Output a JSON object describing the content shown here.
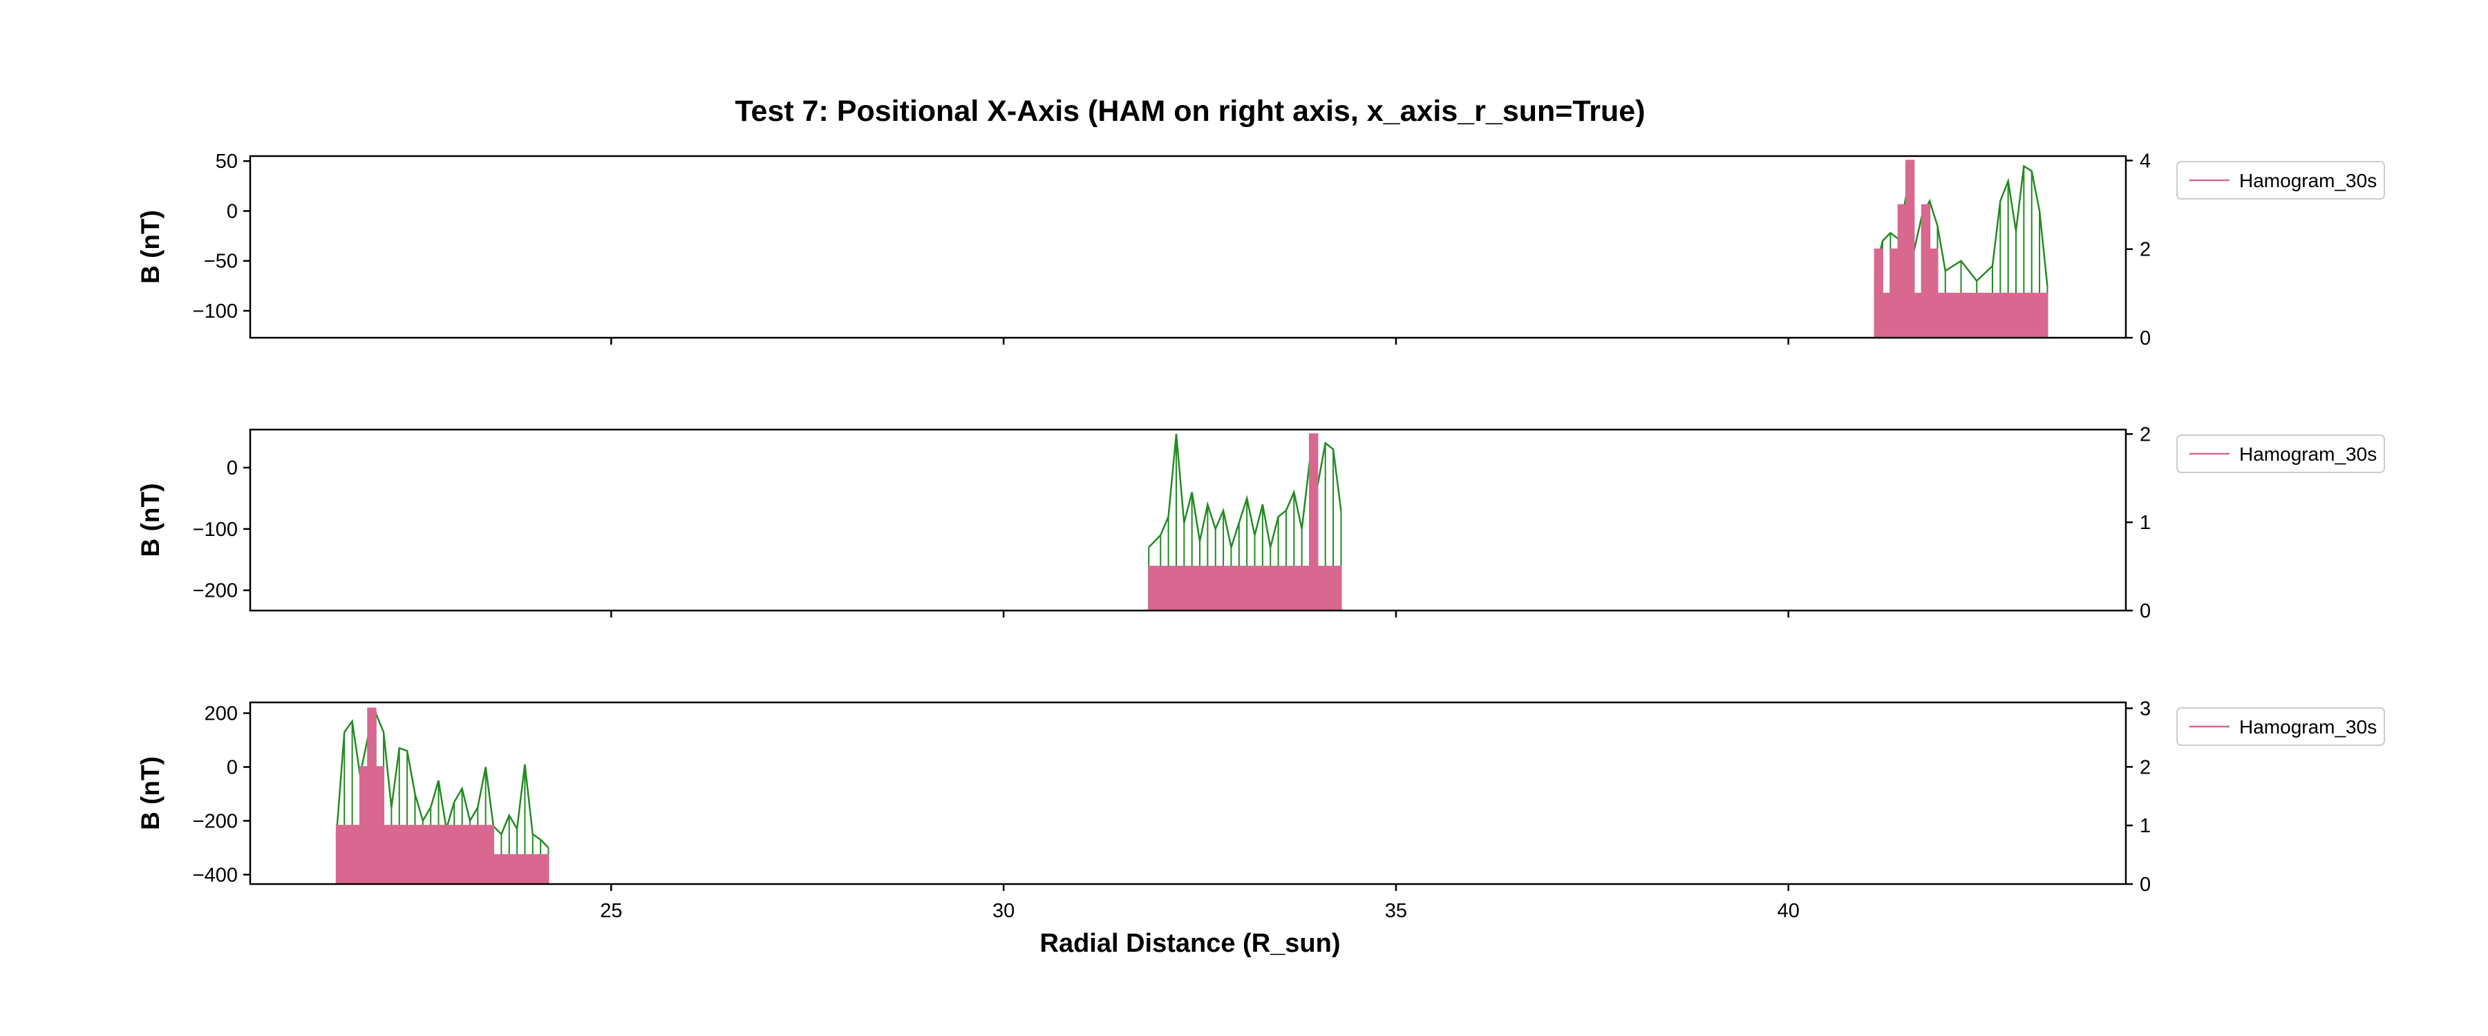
{
  "title": "Test 7: Positional X-Axis (HAM on right axis, x_axis_r_sun=True)",
  "xlabel": "Radial Distance (R_sun)",
  "colors": {
    "field": "#228b22",
    "ham": "#d86890",
    "axes": "#000000",
    "legend_border": "#cccccc"
  },
  "chart_data": {
    "type": "line",
    "title": "Test 7: Positional X-Axis (HAM on right axis, x_axis_r_sun=True)",
    "xlabel": "Radial Distance (R_sun)",
    "xlim": [
      20.4,
      44.3
    ],
    "xticks": [
      25,
      30,
      35,
      40
    ],
    "grid": false,
    "legend_placement": "outside-right",
    "panels": [
      {
        "ylabel": "B (nT)",
        "ylim": [
          -127,
          55
        ],
        "yticks": [
          50,
          0,
          -50,
          -100
        ],
        "ylim_right": [
          0,
          4.1
        ],
        "yticks_right": [
          4,
          2,
          0
        ],
        "legend": "Hamogram_30s",
        "x_range": [
          41.1,
          43.3
        ],
        "series": [
          {
            "name": "",
            "axis": "left",
            "x": [
              41.1,
              41.2,
              41.3,
              41.4,
              41.5,
              41.6,
              41.7,
              41.8,
              41.9,
              42.0,
              42.2,
              42.4,
              42.6,
              42.7,
              42.8,
              42.9,
              43.0,
              43.1,
              43.2,
              43.3
            ],
            "y": [
              -65,
              -30,
              -22,
              -28,
              15,
              -40,
              -5,
              10,
              -15,
              -60,
              -50,
              -70,
              -55,
              10,
              30,
              -20,
              45,
              40,
              0,
              -75
            ]
          },
          {
            "name": "Hamogram_30s",
            "axis": "right",
            "x": [
              41.1,
              41.2,
              41.3,
              41.4,
              41.5,
              41.6,
              41.7,
              41.8,
              41.9,
              42.0,
              42.2,
              42.4,
              42.6,
              42.7,
              42.8,
              42.9,
              43.0,
              43.1,
              43.2,
              43.3
            ],
            "y": [
              2,
              1,
              2,
              3,
              4,
              1,
              3,
              2,
              1,
              1,
              1,
              1,
              1,
              1,
              1,
              1,
              1,
              1,
              1,
              1
            ]
          }
        ]
      },
      {
        "ylabel": "B (nT)",
        "ylim": [
          -233,
          62
        ],
        "yticks": [
          0,
          -100,
          -200
        ],
        "ylim_right": [
          0,
          2.05
        ],
        "yticks_right": [
          2,
          1,
          0
        ],
        "legend": "Hamogram_30s",
        "x_range": [
          31.85,
          34.3
        ],
        "series": [
          {
            "name": "",
            "axis": "left",
            "x": [
              31.85,
              32.0,
              32.1,
              32.2,
              32.3,
              32.4,
              32.5,
              32.6,
              32.7,
              32.8,
              32.9,
              33.0,
              33.1,
              33.2,
              33.3,
              33.4,
              33.5,
              33.6,
              33.7,
              33.8,
              33.9,
              34.0,
              34.1,
              34.2,
              34.3
            ],
            "y": [
              -130,
              -110,
              -80,
              55,
              -90,
              -40,
              -120,
              -60,
              -100,
              -70,
              -130,
              -90,
              -50,
              -110,
              -60,
              -130,
              -80,
              -70,
              -40,
              -100,
              10,
              -30,
              40,
              30,
              -70
            ]
          },
          {
            "name": "Hamogram_30s",
            "axis": "right",
            "x": [
              31.85,
              32.0,
              32.1,
              32.2,
              32.3,
              32.4,
              32.5,
              32.6,
              32.7,
              32.8,
              32.9,
              33.0,
              33.1,
              33.2,
              33.3,
              33.4,
              33.5,
              33.6,
              33.7,
              33.8,
              33.9,
              34.0,
              34.1,
              34.2,
              34.3
            ],
            "y": [
              0.5,
              0.5,
              0.5,
              0.5,
              0.5,
              0.5,
              0.5,
              0.5,
              0.5,
              0.5,
              0.5,
              0.5,
              0.5,
              0.5,
              0.5,
              0.5,
              0.5,
              0.5,
              0.5,
              0.5,
              2,
              0.5,
              0.5,
              0.5,
              0.5
            ]
          }
        ]
      },
      {
        "ylabel": "B (nT)",
        "ylim": [
          -435,
          240
        ],
        "yticks": [
          200,
          0,
          -200,
          -400
        ],
        "ylim_right": [
          0,
          3.1
        ],
        "yticks_right": [
          3,
          2,
          1,
          0
        ],
        "legend": "Hamogram_30s",
        "x_range": [
          21.5,
          24.2
        ],
        "series": [
          {
            "name": "",
            "axis": "left",
            "x": [
              21.5,
              21.6,
              21.7,
              21.8,
              21.9,
              22.0,
              22.1,
              22.2,
              22.3,
              22.4,
              22.5,
              22.6,
              22.7,
              22.8,
              22.9,
              23.0,
              23.1,
              23.2,
              23.3,
              23.4,
              23.5,
              23.6,
              23.7,
              23.8,
              23.9,
              24.0,
              24.1,
              24.2
            ],
            "y": [
              -250,
              130,
              170,
              -30,
              110,
              200,
              130,
              -150,
              70,
              60,
              -100,
              -200,
              -150,
              -50,
              -230,
              -130,
              -80,
              -200,
              -150,
              0,
              -220,
              -250,
              -180,
              -230,
              10,
              -250,
              -270,
              -300
            ]
          },
          {
            "name": "Hamogram_30s",
            "axis": "right",
            "x": [
              21.5,
              21.6,
              21.7,
              21.8,
              21.9,
              22.0,
              22.1,
              22.2,
              22.3,
              22.4,
              22.5,
              22.6,
              22.7,
              22.8,
              22.9,
              23.0,
              23.1,
              23.2,
              23.3,
              23.4,
              23.5,
              23.6,
              23.7,
              23.8,
              23.9,
              24.0,
              24.1,
              24.2
            ],
            "y": [
              1,
              1,
              1,
              2,
              3,
              2,
              1,
              1,
              1,
              1,
              1,
              1,
              1,
              1,
              1,
              1,
              1,
              1,
              1,
              1,
              0.5,
              0.5,
              0.5,
              0.5,
              0.5,
              0.5,
              0.5,
              0.5
            ]
          }
        ]
      }
    ]
  }
}
